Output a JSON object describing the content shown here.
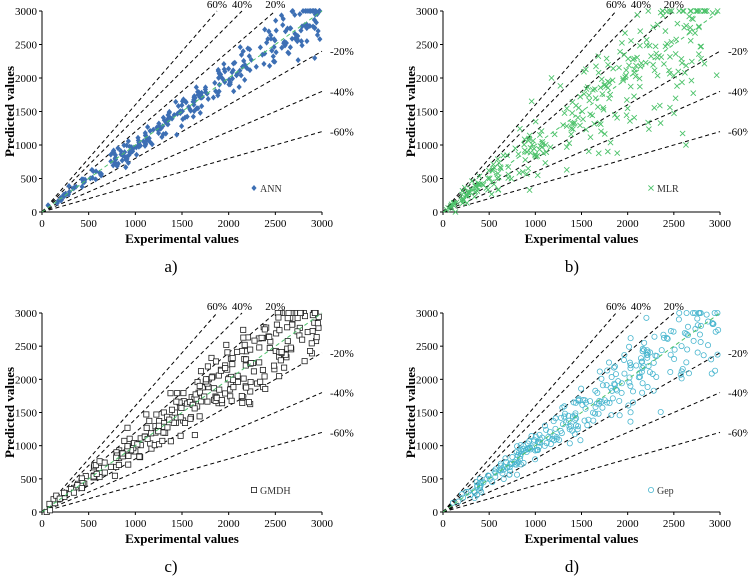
{
  "chart_data": [
    {
      "type": "scatter",
      "panel_label": "a)",
      "xlabel": "Experimental values",
      "ylabel": "Predicted values",
      "xlim": [
        0,
        3000
      ],
      "ylim": [
        0,
        3000
      ],
      "xticks": [
        0,
        500,
        1000,
        1500,
        2000,
        2500,
        3000
      ],
      "yticks": [
        0,
        500,
        1000,
        1500,
        2000,
        2500,
        3000
      ],
      "series_name": "ANN",
      "marker": "diamond",
      "color": "#3d6fb4",
      "spread": 0.08,
      "seed": 11,
      "n_points": 300
    },
    {
      "type": "scatter",
      "panel_label": "b)",
      "xlabel": "Experimental values",
      "ylabel": "Predicted values",
      "xlim": [
        0,
        3000
      ],
      "ylim": [
        0,
        3000
      ],
      "xticks": [
        0,
        500,
        1000,
        1500,
        2000,
        2500,
        3000
      ],
      "yticks": [
        0,
        500,
        1000,
        1500,
        2000,
        2500,
        3000
      ],
      "series_name": "MLR",
      "marker": "x",
      "color": "#4cc26a",
      "spread": 0.22,
      "seed": 23,
      "n_points": 300
    },
    {
      "type": "scatter",
      "panel_label": "c)",
      "xlabel": "Experimental values",
      "ylabel": "Predicted values",
      "xlim": [
        0,
        3000
      ],
      "ylim": [
        0,
        3000
      ],
      "xticks": [
        0,
        500,
        1000,
        1500,
        2000,
        2500,
        3000
      ],
      "yticks": [
        0,
        500,
        1000,
        1500,
        2000,
        2500,
        3000
      ],
      "series_name": "GMDH",
      "marker": "square",
      "color": "#222222",
      "spread": 0.13,
      "seed": 37,
      "n_points": 300
    },
    {
      "type": "scatter",
      "panel_label": "d)",
      "xlabel": "Experimental values",
      "ylabel": "Predicted values",
      "xlim": [
        0,
        3000
      ],
      "ylim": [
        0,
        3000
      ],
      "xticks": [
        0,
        500,
        1000,
        1500,
        2000,
        2500,
        3000
      ],
      "yticks": [
        0,
        500,
        1000,
        1500,
        2000,
        2500,
        3000
      ],
      "series_name": "Gep",
      "marker": "circle",
      "color": "#49b6cf",
      "spread": 0.12,
      "seed": 53,
      "n_points": 300
    }
  ],
  "reference_lines": {
    "ideal_color": "#4cc26a",
    "bands": [
      {
        "label": "60%",
        "factor": 1.6
      },
      {
        "label": "40%",
        "factor": 1.4
      },
      {
        "label": "20%",
        "factor": 1.2
      },
      {
        "label": "-20%",
        "factor": 0.8
      },
      {
        "label": "-40%",
        "factor": 0.6
      },
      {
        "label": "-60%",
        "factor": 0.4
      }
    ]
  }
}
